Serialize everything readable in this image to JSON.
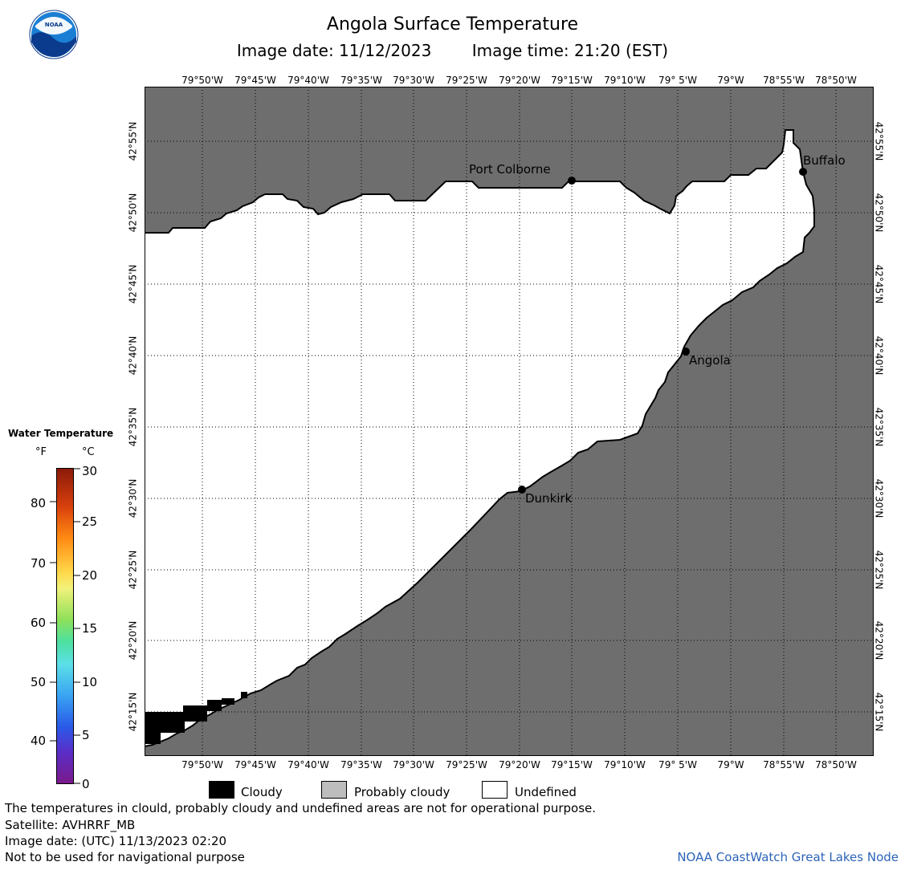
{
  "header": {
    "title": "Angola Surface Temperature",
    "image_date": "Image date: 11/12/2023",
    "image_time": "Image time: 21:20 (EST)"
  },
  "map": {
    "lon_labels": [
      "79°50'W",
      "79°45'W",
      "79°40'W",
      "79°35'W",
      "79°30'W",
      "79°25'W",
      "79°20'W",
      "79°15'W",
      "79°10'W",
      "79° 5'W",
      "79°W",
      "78°55'W",
      "78°50'W"
    ],
    "lat_labels": [
      "42°55'N",
      "42°50'N",
      "42°45'N",
      "42°40'N",
      "42°35'N",
      "42°30'N",
      "42°25'N",
      "42°20'N",
      "42°15'N"
    ],
    "places": {
      "port_colborne": "Port Colborne",
      "buffalo": "Buffalo",
      "angola": "Angola",
      "dunkirk": "Dunkirk"
    },
    "colors": {
      "land": "#6e6e6e",
      "water_undefined": "#ffffff",
      "cloudy": "#000000",
      "coast": "#000000"
    }
  },
  "legend": {
    "title": "Water Temperature",
    "unit_f": "°F",
    "unit_c": "°C",
    "f_ticks": [
      "80",
      "70",
      "60",
      "50",
      "40"
    ],
    "c_ticks": [
      "30",
      "25",
      "20",
      "15",
      "10",
      "5",
      "0"
    ]
  },
  "key": {
    "cloudy": "Cloudy",
    "probably_cloudy": "Probably cloudy",
    "undefined": "Undefined"
  },
  "footer": {
    "note": "The temperatures in clould, probably cloudy and undefined areas are not for operational purpose.",
    "satellite": "Satellite: AVHRRF_MB",
    "utc_date": "Image date: (UTC) 11/13/2023  02:20",
    "nav": "Not to be used for navigational purpose",
    "credit": "NOAA CoastWatch Great Lakes Node"
  }
}
